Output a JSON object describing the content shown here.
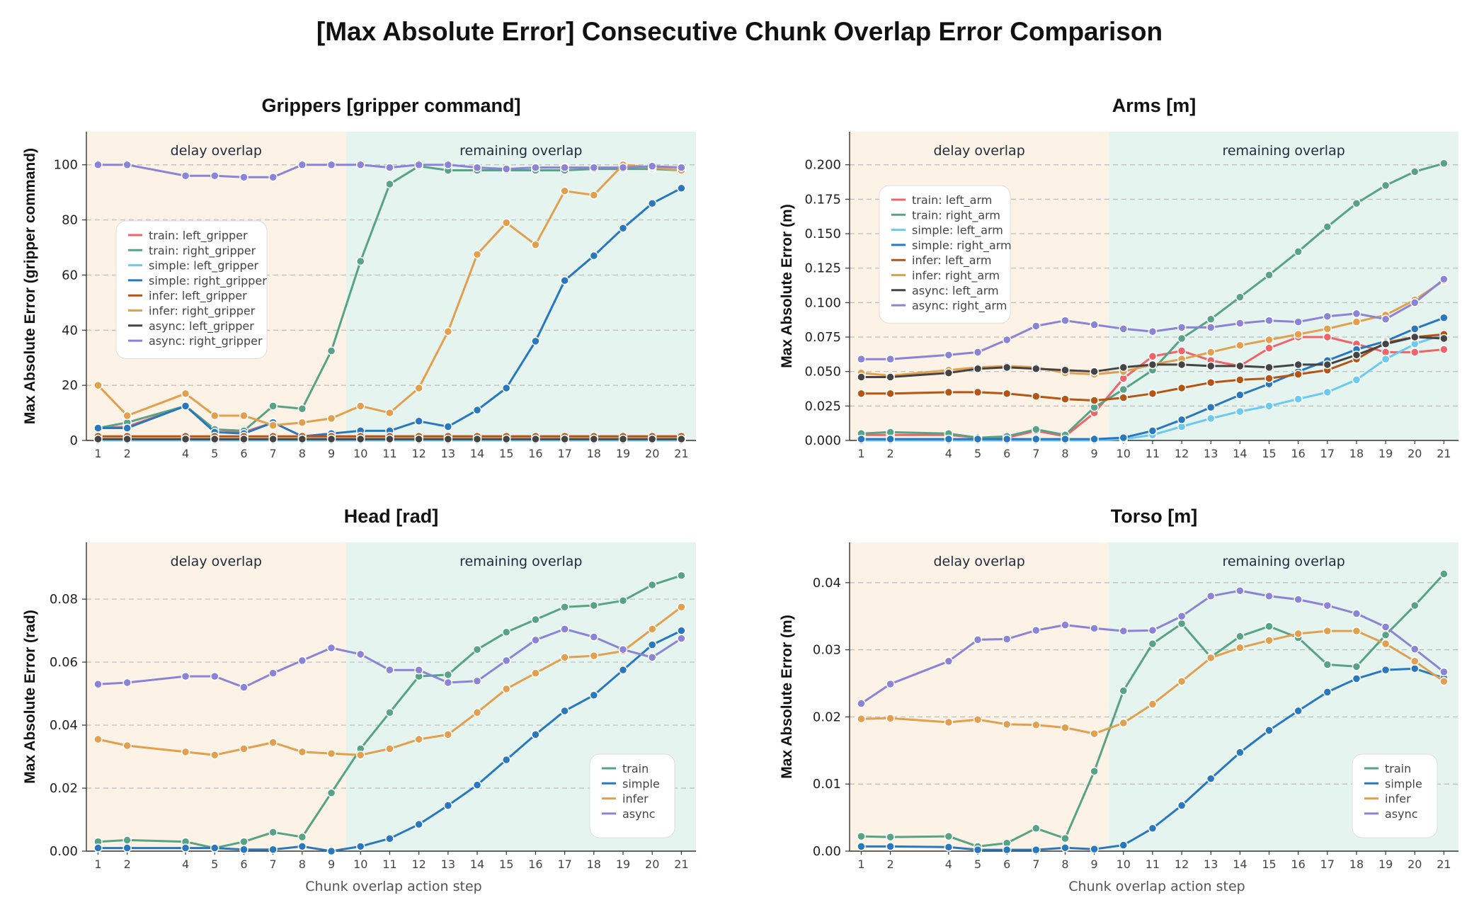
{
  "figure": {
    "title": "[Max Absolute Error] Consecutive Chunk Overlap Error Comparison",
    "xlabel": "Chunk overlap action step"
  },
  "colors": {
    "train": "#56a385",
    "simple": "#2878c0",
    "infer": "#e2a04e",
    "async": "#8a83d6",
    "train_left": "#ee6468",
    "simple_left": "#6bcaf2",
    "infer_left": "#b55513",
    "async_left": "#444444",
    "delay_bg": "#fdf2e6",
    "remaining_bg": "#e5f4ef"
  },
  "chart_data": [
    {
      "type": "line",
      "title": "Grippers [gripper command]",
      "ylabel": "Max Absolute Error (gripper command)",
      "ylim": [
        0,
        112
      ],
      "yticks": [
        0,
        20,
        40,
        60,
        80,
        100
      ],
      "x": [
        1,
        2,
        4,
        5,
        6,
        7,
        8,
        9,
        10,
        11,
        12,
        13,
        14,
        15,
        16,
        17,
        18,
        19,
        20,
        21
      ],
      "regions": [
        {
          "label": "delay overlap",
          "from": 1,
          "to": 9
        },
        {
          "label": "remaining overlap",
          "from": 10,
          "to": 21
        }
      ],
      "legend_position": "upper-left",
      "series": [
        {
          "name": "train: left_gripper",
          "color": "#ee6468",
          "values": [
            4.5,
            5,
            12.5,
            4,
            3,
            6.5,
            1.5,
            1.5,
            1.5,
            1.5,
            1.5,
            1.5,
            1.5,
            1.5,
            1.5,
            1.5,
            1.5,
            1.5,
            1.5,
            1.5
          ]
        },
        {
          "name": "train: right_gripper",
          "color": "#56a385",
          "values": [
            4.5,
            6.5,
            12.5,
            4,
            3.5,
            12.5,
            11.5,
            32.5,
            65,
            93,
            99.5,
            98,
            98,
            98,
            98,
            98,
            98.5,
            98.5,
            98.5,
            98
          ]
        },
        {
          "name": "simple: left_gripper",
          "color": "#6bcaf2",
          "values": [
            0,
            0,
            0,
            0,
            0,
            0,
            0,
            0,
            0,
            0,
            0,
            0,
            0,
            0,
            0,
            0,
            0,
            0,
            0,
            0
          ]
        },
        {
          "name": "simple: right_gripper",
          "color": "#2878c0",
          "values": [
            4.5,
            4.5,
            12.5,
            3,
            2.5,
            6.5,
            1.5,
            2.5,
            3.5,
            3.5,
            7,
            5,
            11,
            19,
            36,
            58,
            67,
            77,
            86,
            91.5
          ]
        },
        {
          "name": "infer: left_gripper",
          "color": "#b55513",
          "values": [
            1.5,
            1.5,
            1.5,
            1.5,
            1.5,
            1.5,
            1.5,
            1.5,
            1.5,
            1.5,
            1.5,
            1.5,
            1.5,
            1.5,
            1.5,
            1.5,
            1.5,
            1.5,
            1.5,
            1.5
          ]
        },
        {
          "name": "infer: right_gripper",
          "color": "#e2a04e",
          "values": [
            20,
            9,
            17,
            9,
            9,
            5.5,
            6.5,
            8,
            12.5,
            10,
            19,
            39.5,
            67.5,
            79,
            71,
            90.5,
            89,
            100,
            99,
            98
          ]
        },
        {
          "name": "async: left_gripper",
          "color": "#444444",
          "values": [
            0.5,
            0.5,
            0.5,
            0.5,
            0.5,
            0.5,
            0.5,
            0.5,
            0.5,
            0.5,
            0.5,
            0.5,
            0.5,
            0.5,
            0.5,
            0.5,
            0.5,
            0.5,
            0.5,
            0.5
          ]
        },
        {
          "name": "async: right_gripper",
          "color": "#8a83d6",
          "values": [
            100,
            100,
            96,
            96,
            95.5,
            95.5,
            100,
            100,
            100,
            99,
            100,
            100,
            99,
            98.5,
            99,
            99,
            99,
            99,
            99.5,
            99
          ]
        }
      ]
    },
    {
      "type": "line",
      "title": "Arms [m]",
      "ylabel": "Max Absolute Error (m)",
      "ylim": [
        0,
        0.224
      ],
      "yticks": [
        "0.000",
        "0.025",
        "0.050",
        "0.075",
        "0.100",
        "0.125",
        "0.150",
        "0.175",
        "0.200"
      ],
      "x": [
        1,
        2,
        4,
        5,
        6,
        7,
        8,
        9,
        10,
        11,
        12,
        13,
        14,
        15,
        16,
        17,
        18,
        19,
        20,
        21
      ],
      "regions": [
        {
          "label": "delay overlap",
          "from": 1,
          "to": 9
        },
        {
          "label": "remaining overlap",
          "from": 10,
          "to": 21
        }
      ],
      "legend_position": "upper-left",
      "series": [
        {
          "name": "train: left_arm",
          "color": "#ee6468",
          "values": [
            0.004,
            0.004,
            0.004,
            0.002,
            0.002,
            0.007,
            0.003,
            0.02,
            0.045,
            0.061,
            0.065,
            0.058,
            0.054,
            0.067,
            0.075,
            0.075,
            0.07,
            0.064,
            0.064,
            0.066
          ]
        },
        {
          "name": "train: right_arm",
          "color": "#56a385",
          "values": [
            0.005,
            0.006,
            0.005,
            0.002,
            0.003,
            0.008,
            0.004,
            0.024,
            0.037,
            0.051,
            0.074,
            0.088,
            0.104,
            0.12,
            0.137,
            0.155,
            0.172,
            0.185,
            0.195,
            0.201
          ]
        },
        {
          "name": "simple: left_arm",
          "color": "#6bcaf2",
          "values": [
            0.0,
            0.0,
            0.0,
            0.0,
            0.0,
            0.0,
            0.0,
            0.0,
            0.001,
            0.004,
            0.01,
            0.016,
            0.021,
            0.025,
            0.03,
            0.035,
            0.044,
            0.059,
            0.07,
            0.077
          ]
        },
        {
          "name": "simple: right_arm",
          "color": "#2878c0",
          "values": [
            0.001,
            0.001,
            0.001,
            0.001,
            0.001,
            0.001,
            0.001,
            0.001,
            0.002,
            0.007,
            0.015,
            0.024,
            0.033,
            0.041,
            0.05,
            0.058,
            0.066,
            0.072,
            0.081,
            0.089
          ]
        },
        {
          "name": "infer: left_arm",
          "color": "#b55513",
          "values": [
            0.034,
            0.034,
            0.035,
            0.035,
            0.034,
            0.032,
            0.03,
            0.029,
            0.031,
            0.034,
            0.038,
            0.042,
            0.044,
            0.045,
            0.048,
            0.051,
            0.059,
            0.071,
            0.075,
            0.077
          ]
        },
        {
          "name": "infer: right_arm",
          "color": "#e2a04e",
          "values": [
            0.049,
            0.047,
            0.051,
            0.053,
            0.054,
            0.053,
            0.049,
            0.048,
            0.05,
            0.055,
            0.059,
            0.064,
            0.069,
            0.073,
            0.077,
            0.081,
            0.086,
            0.091,
            0.102,
            0.116
          ]
        },
        {
          "name": "async: left_arm",
          "color": "#444444",
          "values": [
            0.046,
            0.046,
            0.049,
            0.052,
            0.053,
            0.052,
            0.051,
            0.05,
            0.053,
            0.055,
            0.055,
            0.054,
            0.054,
            0.053,
            0.055,
            0.055,
            0.062,
            0.07,
            0.075,
            0.074
          ]
        },
        {
          "name": "async: right_arm",
          "color": "#8a83d6",
          "values": [
            0.059,
            0.059,
            0.062,
            0.064,
            0.073,
            0.083,
            0.087,
            0.084,
            0.081,
            0.079,
            0.082,
            0.082,
            0.085,
            0.087,
            0.086,
            0.09,
            0.092,
            0.088,
            0.1,
            0.117
          ]
        }
      ]
    },
    {
      "type": "line",
      "title": "Head [rad]",
      "ylabel": "Max Absolute Error (rad)",
      "ylim": [
        0,
        0.098
      ],
      "yticks": [
        "0.00",
        "0.02",
        "0.04",
        "0.06",
        "0.08"
      ],
      "x": [
        1,
        2,
        4,
        5,
        6,
        7,
        8,
        9,
        10,
        11,
        12,
        13,
        14,
        15,
        16,
        17,
        18,
        19,
        20,
        21
      ],
      "regions": [
        {
          "label": "delay overlap",
          "from": 1,
          "to": 9
        },
        {
          "label": "remaining overlap",
          "from": 10,
          "to": 21
        }
      ],
      "legend_position": "lower-right",
      "series": [
        {
          "name": "train",
          "color": "#56a385",
          "values": [
            0.003,
            0.0035,
            0.003,
            0.001,
            0.003,
            0.006,
            0.0045,
            0.0185,
            0.0325,
            0.044,
            0.0555,
            0.056,
            0.064,
            0.0695,
            0.0735,
            0.0775,
            0.078,
            0.0795,
            0.0845,
            0.0875
          ]
        },
        {
          "name": "simple",
          "color": "#2878c0",
          "values": [
            0.001,
            0.001,
            0.001,
            0.001,
            0.0005,
            0.0005,
            0.0015,
            0.0,
            0.0015,
            0.004,
            0.0085,
            0.0145,
            0.021,
            0.029,
            0.037,
            0.0445,
            0.0495,
            0.0575,
            0.0655,
            0.07
          ]
        },
        {
          "name": "infer",
          "color": "#e2a04e",
          "values": [
            0.0355,
            0.0335,
            0.0315,
            0.0305,
            0.0325,
            0.0345,
            0.0315,
            0.031,
            0.0305,
            0.0325,
            0.0355,
            0.037,
            0.044,
            0.0515,
            0.0565,
            0.0615,
            0.062,
            0.0635,
            0.0705,
            0.0775
          ]
        },
        {
          "name": "async",
          "color": "#8a83d6",
          "values": [
            0.053,
            0.0535,
            0.0555,
            0.0555,
            0.052,
            0.0565,
            0.0605,
            0.0645,
            0.0625,
            0.0575,
            0.0575,
            0.0535,
            0.054,
            0.0605,
            0.067,
            0.0705,
            0.068,
            0.064,
            0.0615,
            0.0675
          ]
        }
      ]
    },
    {
      "type": "line",
      "title": "Torso [m]",
      "ylabel": "Max Absolute Error (m)",
      "ylim": [
        0,
        0.046
      ],
      "yticks": [
        "0.00",
        "0.01",
        "0.02",
        "0.03",
        "0.04"
      ],
      "x": [
        1,
        2,
        4,
        5,
        6,
        7,
        8,
        9,
        10,
        11,
        12,
        13,
        14,
        15,
        16,
        17,
        18,
        19,
        20,
        21
      ],
      "regions": [
        {
          "label": "delay overlap",
          "from": 1,
          "to": 9
        },
        {
          "label": "remaining overlap",
          "from": 10,
          "to": 21
        }
      ],
      "legend_position": "lower-right",
      "series": [
        {
          "name": "train",
          "color": "#56a385",
          "values": [
            0.0022,
            0.0021,
            0.0022,
            0.0007,
            0.0012,
            0.0034,
            0.0019,
            0.0119,
            0.0239,
            0.0309,
            0.0339,
            0.0289,
            0.032,
            0.0335,
            0.0318,
            0.0278,
            0.0275,
            0.0322,
            0.0366,
            0.0413
          ]
        },
        {
          "name": "simple",
          "color": "#2878c0",
          "values": [
            0.0007,
            0.0007,
            0.0006,
            0.0002,
            0.0002,
            0.0002,
            0.0005,
            0.0003,
            0.0009,
            0.0034,
            0.0068,
            0.0108,
            0.0147,
            0.018,
            0.0209,
            0.0237,
            0.0257,
            0.027,
            0.0272,
            0.0258
          ]
        },
        {
          "name": "infer",
          "color": "#e2a04e",
          "values": [
            0.0197,
            0.0198,
            0.0192,
            0.0196,
            0.0189,
            0.0188,
            0.0184,
            0.0175,
            0.0191,
            0.0219,
            0.0253,
            0.0288,
            0.0303,
            0.0314,
            0.0324,
            0.0328,
            0.0328,
            0.0309,
            0.0283,
            0.0253
          ]
        },
        {
          "name": "async",
          "color": "#8a83d6",
          "values": [
            0.022,
            0.0249,
            0.0283,
            0.0315,
            0.0316,
            0.0329,
            0.0337,
            0.0332,
            0.0328,
            0.0329,
            0.035,
            0.038,
            0.0388,
            0.038,
            0.0375,
            0.0366,
            0.0354,
            0.0334,
            0.0301,
            0.0267
          ]
        }
      ]
    }
  ]
}
